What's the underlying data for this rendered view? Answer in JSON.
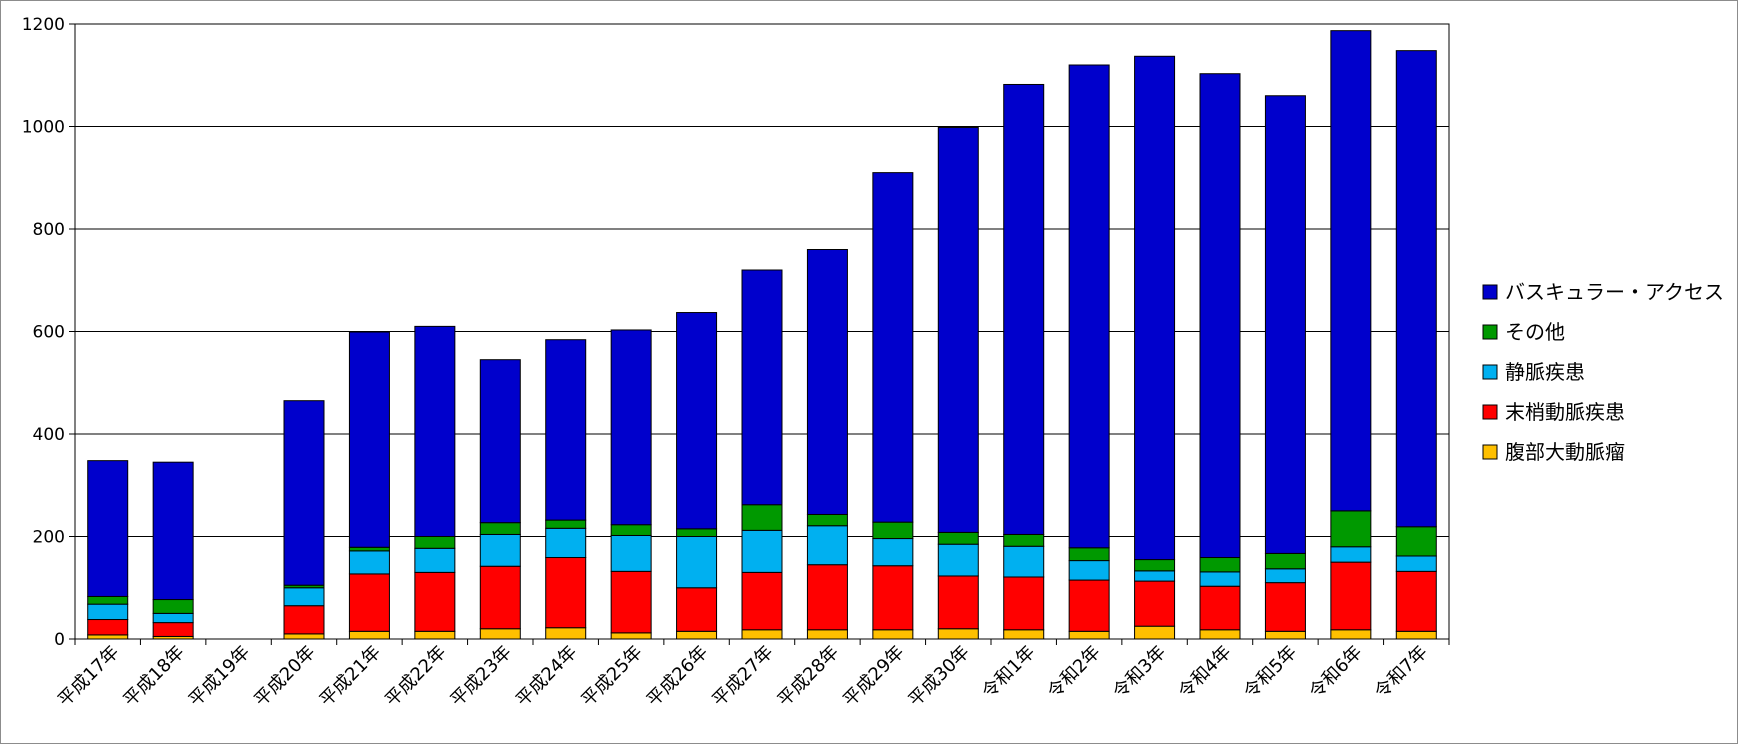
{
  "chart_data": {
    "type": "bar",
    "stacked": true,
    "categories": [
      "平成17年",
      "平成18年",
      "平成19年",
      "平成20年",
      "平成21年",
      "平成22年",
      "平成23年",
      "平成24年",
      "平成25年",
      "平成26年",
      "平成27年",
      "平成28年",
      "平成29年",
      "平成30年",
      "令和1年",
      "令和2年",
      "令和3年",
      "令和4年",
      "令和5年",
      "令和6年",
      "令和7年"
    ],
    "ylim": [
      0,
      1200
    ],
    "yticks": [
      0,
      200,
      400,
      600,
      800,
      1000,
      1200
    ],
    "grid": true,
    "legend_position": "right",
    "series": [
      {
        "name": "腹部大動脈瘤",
        "color": "#FFC000",
        "values": [
          8,
          5,
          0,
          10,
          15,
          15,
          20,
          22,
          12,
          15,
          18,
          18,
          18,
          20,
          18,
          15,
          25,
          18,
          15,
          18,
          15
        ]
      },
      {
        "name": "末梢動脈疾患",
        "color": "#FF0000",
        "values": [
          30,
          27,
          0,
          55,
          112,
          115,
          122,
          137,
          120,
          85,
          112,
          127,
          125,
          103,
          103,
          100,
          88,
          85,
          95,
          132,
          117
        ]
      },
      {
        "name": "静脈疾患",
        "color": "#00B0F0",
        "values": [
          30,
          18,
          0,
          35,
          45,
          47,
          62,
          57,
          70,
          100,
          82,
          76,
          53,
          62,
          60,
          38,
          20,
          28,
          27,
          30,
          30
        ]
      },
      {
        "name": "その他",
        "color": "#009900",
        "values": [
          15,
          27,
          0,
          5,
          7,
          23,
          23,
          16,
          21,
          15,
          50,
          22,
          32,
          23,
          23,
          25,
          22,
          28,
          30,
          70,
          57
        ]
      },
      {
        "name": "バスキュラー・アクセス",
        "color": "#0000CC",
        "values": [
          265,
          268,
          0,
          360,
          420,
          410,
          318,
          352,
          380,
          422,
          458,
          517,
          682,
          790,
          878,
          942,
          982,
          944,
          893,
          937,
          929
        ]
      }
    ],
    "legend_order": [
      "バスキュラー・アクセス",
      "その他",
      "静脈疾患",
      "末梢動脈疾患",
      "腹部大動脈瘤"
    ]
  }
}
